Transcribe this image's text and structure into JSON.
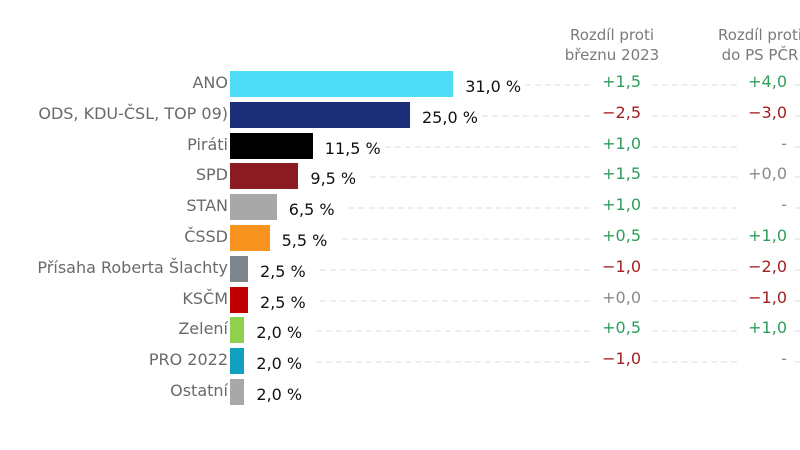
{
  "chart_data": {
    "type": "bar",
    "orientation": "horizontal",
    "unit": "%",
    "columns": {
      "change_1": [
        "Rozdíl proti",
        "březnu 2023"
      ],
      "change_2": [
        "Rozdíl proti",
        "do PS PČR"
      ]
    },
    "categories": [
      "ANO",
      "ODS, KDU-ČSL, TOP 09)",
      "Piráti",
      "SPD",
      "STAN",
      "ČSSD",
      "Přísaha Roberta Šlachty",
      "KSČM",
      "Zelení",
      "PRO 2022",
      "Ostatní"
    ],
    "values": [
      31.0,
      25.0,
      11.5,
      9.5,
      6.5,
      5.5,
      2.5,
      2.5,
      2.0,
      2.0,
      2.0
    ],
    "value_labels": [
      "31,0 %",
      "25,0 %",
      "11,5 %",
      "9,5 %",
      "6,5 %",
      "5,5 %",
      "2,5 %",
      "2,5 %",
      "2,0 %",
      "2,0 %",
      "2,0 %"
    ],
    "colors": [
      "#4fdcf8",
      "#1e2f7a",
      "#000000",
      "#8b1c22",
      "#a8a8a8",
      "#f7931e",
      "#7d868c",
      "#c00000",
      "#8fd14f",
      "#10a0c0",
      "#a8a8a8"
    ],
    "change_1": [
      "+1,5",
      "−2,5",
      "+1,0",
      "+1,5",
      "+1,0",
      "+0,5",
      "−1,0",
      "+0,0",
      "+0,5",
      "−1,0",
      ""
    ],
    "change_2": [
      "+4,0",
      "−3,0",
      "-",
      "+0,0",
      "-",
      "+1,0",
      "−2,0",
      "−1,0",
      "+1,0",
      "-",
      ""
    ],
    "change_colors": {
      "positive": "#2e9e5b",
      "negative": "#a32020",
      "neutral": "#8a8a8a"
    }
  }
}
